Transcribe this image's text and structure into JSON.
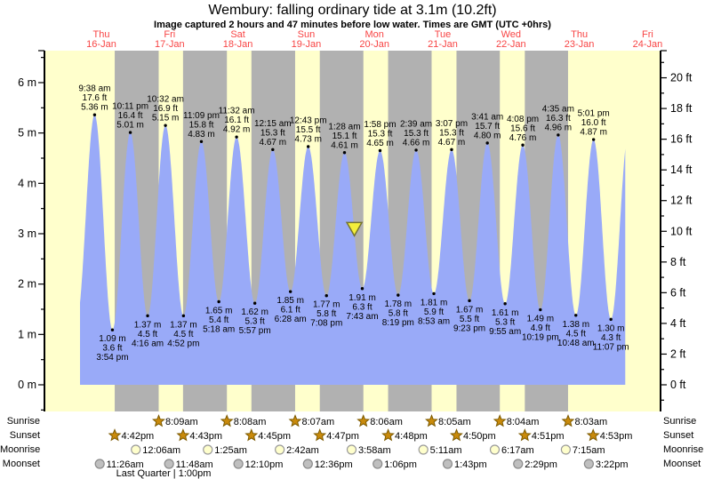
{
  "title": "Wembury: falling  ordinary tide at 3.1m (10.2ft)",
  "subtitle": "Image captured 2 hours and 47 minutes before low water. Times are GMT (UTC +0hrs)",
  "colors": {
    "daylight_band": "#ffffcc",
    "night_band": "#b1b1b1",
    "tide_fill": "#99aaf8",
    "axis": "#000000",
    "day_label_red": "#f84444",
    "sun_star_fill": "#c98a0b",
    "sun_star_stroke": "#7c5a00",
    "moonrise_fill": "#ffffcc",
    "moonrise_stroke": "#9a9a9a",
    "moonset_fill": "#bfbfbf",
    "moonset_stroke": "#8a8a8a",
    "marker_fill": "#f3ee3b",
    "marker_stroke": "#75752e",
    "label_text": "#000000"
  },
  "chart_data": {
    "type": "area",
    "title": "Wembury: falling  ordinary tide at 3.1m (10.2ft)",
    "x_axis": {
      "days": [
        {
          "weekday": "Thu",
          "date": "16-Jan"
        },
        {
          "weekday": "Fri",
          "date": "17-Jan"
        },
        {
          "weekday": "Sat",
          "date": "18-Jan"
        },
        {
          "weekday": "Sun",
          "date": "19-Jan"
        },
        {
          "weekday": "Mon",
          "date": "20-Jan"
        },
        {
          "weekday": "Tue",
          "date": "21-Jan"
        },
        {
          "weekday": "Wed",
          "date": "22-Jan"
        },
        {
          "weekday": "Thu",
          "date": "23-Jan"
        },
        {
          "weekday": "Fri",
          "date": "24-Jan"
        }
      ]
    },
    "y_axis_left": {
      "unit": "m",
      "major_ticks": [
        0,
        1,
        2,
        3,
        4,
        5,
        6
      ],
      "tick_suffix": " m"
    },
    "y_axis_right": {
      "unit": "ft",
      "major_ticks": [
        0,
        2,
        4,
        6,
        8,
        10,
        12,
        14,
        16,
        18,
        20
      ],
      "tick_suffix": " ft"
    },
    "high_tides": [
      {
        "day": 0,
        "time": "9:38 am",
        "ft": "17.6 ft",
        "m": "5.36 m",
        "height_m": 5.36
      },
      {
        "day": 0,
        "time": "10:11 pm",
        "ft": "16.4 ft",
        "m": "5.01 m",
        "height_m": 5.01
      },
      {
        "day": 1,
        "time": "10:32 am",
        "ft": "16.9 ft",
        "m": "5.15 m",
        "height_m": 5.15
      },
      {
        "day": 1,
        "time": "11:09 pm",
        "ft": "15.8 ft",
        "m": "4.83 m",
        "height_m": 4.83
      },
      {
        "day": 2,
        "time": "11:32 am",
        "ft": "16.1 ft",
        "m": "4.92 m",
        "height_m": 4.92
      },
      {
        "day": 3,
        "time": "12:15 am",
        "ft": "15.3 ft",
        "m": "4.67 m",
        "height_m": 4.67
      },
      {
        "day": 3,
        "time": "12:43 pm",
        "ft": "15.5 ft",
        "m": "4.73 m",
        "height_m": 4.73
      },
      {
        "day": 4,
        "time": "1:28 am",
        "ft": "15.1 ft",
        "m": "4.61 m",
        "height_m": 4.61
      },
      {
        "day": 4,
        "time": "1:58 pm",
        "ft": "15.3 ft",
        "m": "4.65 m",
        "height_m": 4.65
      },
      {
        "day": 5,
        "time": "2:39 am",
        "ft": "15.3 ft",
        "m": "4.66 m",
        "height_m": 4.66
      },
      {
        "day": 5,
        "time": "3:07 pm",
        "ft": "15.3 ft",
        "m": "4.67 m",
        "height_m": 4.67
      },
      {
        "day": 6,
        "time": "3:41 am",
        "ft": "15.7 ft",
        "m": "4.80 m",
        "height_m": 4.8
      },
      {
        "day": 6,
        "time": "4:08 pm",
        "ft": "15.6 ft",
        "m": "4.76 m",
        "height_m": 4.76
      },
      {
        "day": 7,
        "time": "4:35 am",
        "ft": "16.3 ft",
        "m": "4.96 m",
        "height_m": 4.96
      },
      {
        "day": 7,
        "time": "5:01 pm",
        "ft": "16.0 ft",
        "m": "4.87 m",
        "height_m": 4.87
      }
    ],
    "low_tides": [
      {
        "day": 0,
        "time": "3:54 pm",
        "ft": "3.6 ft",
        "m": "1.09 m",
        "height_m": 1.09
      },
      {
        "day": 1,
        "time": "4:16 am",
        "ft": "4.5 ft",
        "m": "1.37 m",
        "height_m": 1.37
      },
      {
        "day": 1,
        "time": "4:52 pm",
        "ft": "4.5 ft",
        "m": "1.37 m",
        "height_m": 1.37
      },
      {
        "day": 2,
        "time": "5:18 am",
        "ft": "5.4 ft",
        "m": "1.65 m",
        "height_m": 1.65
      },
      {
        "day": 2,
        "time": "5:57 pm",
        "ft": "5.3 ft",
        "m": "1.62 m",
        "height_m": 1.62
      },
      {
        "day": 3,
        "time": "6:28 am",
        "ft": "6.1 ft",
        "m": "1.85 m",
        "height_m": 1.85
      },
      {
        "day": 3,
        "time": "7:08 pm",
        "ft": "5.8 ft",
        "m": "1.77 m",
        "height_m": 1.77
      },
      {
        "day": 4,
        "time": "7:43 am",
        "ft": "6.3 ft",
        "m": "1.91 m",
        "height_m": 1.91
      },
      {
        "day": 4,
        "time": "8:19 pm",
        "ft": "5.8 ft",
        "m": "1.78 m",
        "height_m": 1.78
      },
      {
        "day": 5,
        "time": "8:53 am",
        "ft": "5.9 ft",
        "m": "1.81 m",
        "height_m": 1.81
      },
      {
        "day": 5,
        "time": "9:23 pm",
        "ft": "5.5 ft",
        "m": "1.67 m",
        "height_m": 1.67
      },
      {
        "day": 6,
        "time": "9:55 am",
        "ft": "5.3 ft",
        "m": "1.61 m",
        "height_m": 1.61
      },
      {
        "day": 6,
        "time": "10:19 pm",
        "ft": "4.9 ft",
        "m": "1.49 m",
        "height_m": 1.49
      },
      {
        "day": 7,
        "time": "10:48 am",
        "ft": "4.5 ft",
        "m": "1.38 m",
        "height_m": 1.38
      },
      {
        "day": 7,
        "time": "11:07 pm",
        "ft": "4.3 ft",
        "m": "1.30 m",
        "height_m": 1.3
      }
    ],
    "curve_boundaries": {
      "start_low": {
        "day": 0,
        "time": "3:20 am",
        "height_m": 1.3
      },
      "end_high": {
        "day": 8,
        "time": "5:26 am",
        "height_m": 5.05
      },
      "draw_from": {
        "day": 0,
        "time": "4:30 am"
      },
      "draw_to": {
        "day": 8,
        "time": "4:10 am"
      }
    },
    "capture_marker": {
      "day": 4,
      "time": "4:56 am",
      "height_m": 3.1
    }
  },
  "astro": {
    "rows": [
      {
        "label": "Sunrise",
        "icon": "sun-star",
        "events": [
          {
            "day": 1,
            "time": "8:09am"
          },
          {
            "day": 2,
            "time": "8:08am"
          },
          {
            "day": 3,
            "time": "8:07am"
          },
          {
            "day": 4,
            "time": "8:06am"
          },
          {
            "day": 5,
            "time": "8:05am"
          },
          {
            "day": 6,
            "time": "8:04am"
          },
          {
            "day": 7,
            "time": "8:03am"
          }
        ]
      },
      {
        "label": "Sunset",
        "icon": "sun-star",
        "events": [
          {
            "day": 0,
            "time": "4:42pm"
          },
          {
            "day": 1,
            "time": "4:43pm"
          },
          {
            "day": 2,
            "time": "4:45pm"
          },
          {
            "day": 3,
            "time": "4:47pm"
          },
          {
            "day": 4,
            "time": "4:48pm"
          },
          {
            "day": 5,
            "time": "4:50pm"
          },
          {
            "day": 6,
            "time": "4:51pm"
          },
          {
            "day": 7,
            "time": "4:53pm"
          }
        ]
      },
      {
        "label": "Moonrise",
        "icon": "moon-light",
        "events": [
          {
            "day": 1,
            "time": "12:06am"
          },
          {
            "day": 2,
            "time": "1:25am"
          },
          {
            "day": 3,
            "time": "2:42am"
          },
          {
            "day": 4,
            "time": "3:58am"
          },
          {
            "day": 5,
            "time": "5:11am"
          },
          {
            "day": 6,
            "time": "6:17am"
          },
          {
            "day": 7,
            "time": "7:15am"
          }
        ]
      },
      {
        "label": "Moonset",
        "icon": "moon-dark",
        "events": [
          {
            "day": 0,
            "time": "11:26am"
          },
          {
            "day": 1,
            "time": "11:48am"
          },
          {
            "day": 2,
            "time": "12:10pm"
          },
          {
            "day": 3,
            "time": "12:36pm"
          },
          {
            "day": 4,
            "time": "1:06pm"
          },
          {
            "day": 5,
            "time": "1:43pm"
          },
          {
            "day": 6,
            "time": "2:29pm"
          },
          {
            "day": 7,
            "time": "3:22pm"
          }
        ]
      }
    ],
    "moon_phase": "Last Quarter | 1:00pm"
  }
}
